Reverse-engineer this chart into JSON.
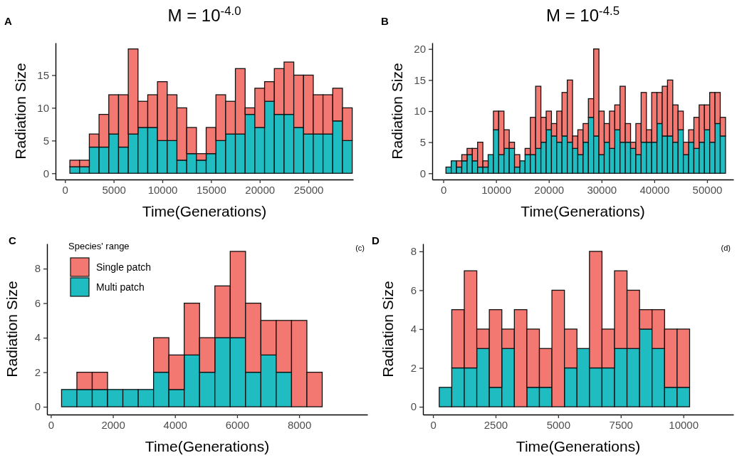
{
  "chart_data": [
    {
      "type": "bar",
      "title": "M = 10$^{-4.0}$",
      "xlabel": "Time(Generations)",
      "ylabel": "Radiation Size",
      "annotations": [
        "A"
      ],
      "stacked": true,
      "x": [
        1000,
        2000,
        3000,
        4000,
        5000,
        6000,
        7000,
        8000,
        9000,
        10000,
        11000,
        12000,
        13000,
        14000,
        15000,
        16000,
        17000,
        18000,
        19000,
        20000,
        21000,
        22000,
        23000,
        24000,
        25000,
        26000,
        27000,
        28000,
        29000
      ],
      "series": [
        {
          "color": "#1fbdc1",
          "values": [
            1,
            1,
            4,
            4,
            6,
            4,
            6,
            7,
            7,
            5,
            5,
            2,
            3,
            2,
            3,
            5,
            6,
            6,
            9,
            7,
            11,
            9,
            9,
            7,
            6,
            6,
            6,
            8,
            5
          ]
        },
        {
          "color": "#f47872",
          "values": [
            1,
            1,
            2,
            5,
            6,
            8,
            13,
            4,
            5,
            9,
            7,
            8,
            4,
            1,
            4,
            7,
            5,
            10,
            1,
            6,
            3,
            7,
            8,
            8,
            9,
            6,
            6,
            5,
            5
          ]
        }
      ],
      "xlim": [
        -970,
        29600
      ],
      "xticks": [
        0,
        5000,
        10000,
        15000,
        20000,
        25000
      ],
      "ylim": [
        -0.95,
        19.95
      ],
      "yticks": [
        0,
        5,
        10,
        15
      ]
    },
    {
      "type": "bar",
      "title": "M = 10$^{-4.5}$",
      "xlabel": "Time(Generations)",
      "ylabel": "Radiation Size",
      "annotations": [
        "B"
      ],
      "stacked": true,
      "x": [
        1000,
        2000,
        3000,
        4000,
        5000,
        6000,
        7000,
        8000,
        9000,
        10000,
        11000,
        12000,
        13000,
        14000,
        15000,
        16000,
        17000,
        18000,
        19000,
        20000,
        21000,
        22000,
        23000,
        24000,
        25000,
        26000,
        27000,
        28000,
        29000,
        30000,
        31000,
        32000,
        33000,
        34000,
        35000,
        36000,
        37000,
        38000,
        39000,
        40000,
        41000,
        42000,
        43000,
        44000,
        45000,
        46000,
        47000,
        48000,
        49000,
        50000,
        51000,
        52000,
        53000
      ],
      "series": [
        {
          "color": "#1fbdc1",
          "values": [
            1,
            2,
            1,
            2,
            3,
            2,
            1,
            1,
            3,
            7,
            3,
            4,
            4,
            1,
            2,
            3,
            3,
            4,
            5,
            7,
            6,
            5,
            6,
            5,
            4,
            3,
            5,
            9,
            6,
            3,
            5,
            4,
            7,
            5,
            5,
            4,
            3,
            5,
            5,
            5,
            8,
            6,
            6,
            5,
            7,
            3,
            5,
            4,
            5,
            7,
            5,
            8,
            6
          ]
        },
        {
          "color": "#f47872",
          "values": [
            0,
            0,
            1,
            1,
            1,
            2,
            4,
            1,
            0,
            3,
            7,
            3,
            1,
            2,
            0,
            1,
            6,
            10,
            4,
            3,
            2,
            5,
            7,
            10,
            2,
            4,
            3,
            3,
            14,
            7,
            3,
            6,
            4,
            9,
            3,
            1,
            5,
            8,
            2,
            8,
            5,
            8,
            9,
            6,
            3,
            2,
            2,
            5,
            6,
            4,
            8,
            5,
            3
          ]
        }
      ],
      "xlim": [
        -2100,
        55000
      ],
      "xticks": [
        0,
        10000,
        20000,
        30000,
        40000,
        50000
      ],
      "ylim": [
        -1,
        21
      ],
      "yticks": [
        0,
        5,
        10,
        15,
        20
      ]
    },
    {
      "type": "bar",
      "xlabel": "Time(Generations)",
      "ylabel": "Radiation Size",
      "annotations": [
        "C",
        "(c)"
      ],
      "stacked": true,
      "legend": "top left",
      "legend_title": "Species' range",
      "x": [
        592,
        1086,
        1580,
        2074,
        2568,
        3062,
        3556,
        4050,
        4544,
        5038,
        5532,
        6026,
        6520,
        7014,
        7508,
        8002,
        8496,
        8990,
        9484
      ],
      "series": [
        {
          "name": "Multi patch",
          "color": "#1fbdc1",
          "values": [
            1,
            1,
            1,
            1,
            1,
            1,
            2,
            1,
            3,
            2,
            4,
            4,
            2,
            3,
            2,
            0,
            0,
            0,
            0
          ]
        },
        {
          "name": "Single patch",
          "color": "#f47872",
          "values": [
            0,
            1,
            1,
            0,
            0,
            0,
            2,
            2,
            3,
            2,
            3,
            5,
            4,
            2,
            3,
            5,
            2,
            0,
            0
          ]
        }
      ],
      "xlim": [
        -124,
        10200
      ],
      "xticks": [
        0,
        2000,
        4000,
        6000,
        8000
      ],
      "ylim": [
        -0.45,
        9.45
      ],
      "yticks": [
        0,
        2,
        4,
        6,
        8
      ]
    },
    {
      "type": "bar",
      "xlabel": "Time(Generations)",
      "ylabel": "Radiation Size",
      "annotations": [
        "D",
        "(d)"
      ],
      "stacked": true,
      "x": [
        500,
        1000,
        1500,
        2000,
        2500,
        3000,
        3500,
        4000,
        4500,
        5000,
        5500,
        6000,
        6500,
        7000,
        7500,
        8000,
        8500,
        9000,
        9500,
        10000,
        10500,
        11000,
        11500
      ],
      "series": [
        {
          "color": "#1fbdc1",
          "values": [
            1,
            2,
            2,
            3,
            1,
            3,
            0,
            1,
            1,
            0,
            2,
            3,
            2,
            2,
            3,
            3,
            4,
            3,
            1,
            1,
            0,
            0,
            0
          ]
        },
        {
          "color": "#f47872",
          "values": [
            0,
            3,
            5,
            1,
            4,
            1,
            5,
            3,
            2,
            6,
            2,
            0,
            6,
            2,
            4,
            3,
            1,
            2,
            3,
            3,
            0,
            0,
            0
          ]
        }
      ],
      "xlim": [
        -400,
        12000
      ],
      "xticks": [
        0,
        2500,
        5000,
        7500,
        10000
      ],
      "ylim": [
        -0.4,
        8.4
      ],
      "yticks": [
        0,
        2,
        4,
        6,
        8
      ]
    }
  ]
}
